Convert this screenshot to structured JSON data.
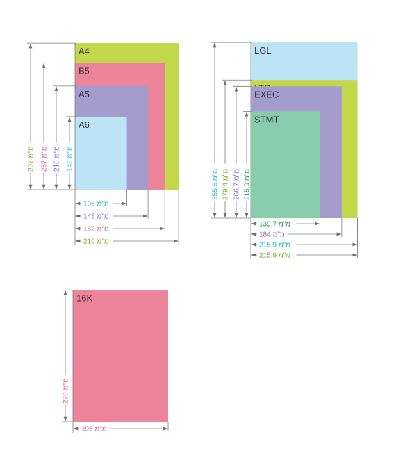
{
  "colors": {
    "green": "#c2d84a",
    "pink": "#ee8499",
    "purple": "#a39ccc",
    "blue": "#bde3f7",
    "teal": "#87ccab",
    "line": "#7b7b7b",
    "label_text": "#333333",
    "cyan": "#19b7d6",
    "green_text": "#7ab02a",
    "pink_text": "#e3577a",
    "purple_text": "#7e6eb5",
    "teal_text": "#1a9c63"
  },
  "unit": "מ\"מ",
  "iso": {
    "sheets": [
      {
        "label": "A4",
        "width": 210,
        "height": 297,
        "color": "green",
        "width_text": "210",
        "height_text": "297",
        "width_text_color": "green_text",
        "height_text_color": "green_text"
      },
      {
        "label": "B5",
        "width": 182,
        "height": 257,
        "color": "pink",
        "width_text": "182",
        "height_text": "257",
        "width_text_color": "pink_text",
        "height_text_color": "pink_text"
      },
      {
        "label": "A5",
        "width": 148,
        "height": 210,
        "color": "purple",
        "width_text": "148",
        "height_text": "210",
        "width_text_color": "purple_text",
        "height_text_color": "purple_text"
      },
      {
        "label": "A6",
        "width": 105,
        "height": 148,
        "color": "blue",
        "width_text": "105",
        "height_text": "148",
        "width_text_color": "cyan",
        "height_text_color": "cyan"
      }
    ]
  },
  "us": {
    "sheets": [
      {
        "label": "LGL",
        "width": 215.9,
        "height": 355.6,
        "color": "blue",
        "width_text": "215.9",
        "height_text": "355.6",
        "width_text_color": "cyan",
        "height_text_color": "cyan"
      },
      {
        "label": "LTR",
        "width": 215.9,
        "height": 279.4,
        "color": "green",
        "width_text": "215.9",
        "height_text": "279.4",
        "width_text_color": "green_text",
        "height_text_color": "green_text"
      },
      {
        "label": "EXEC",
        "width": 184,
        "height": 266.7,
        "color": "purple",
        "width_text": "184",
        "height_text": "266.7",
        "width_text_color": "purple_text",
        "height_text_color": "purple_text"
      },
      {
        "label": "STMT",
        "width": 139.7,
        "height": 215.9,
        "color": "teal",
        "width_text": "139.7",
        "height_text": "215.9",
        "width_text_color": "teal_text",
        "height_text_color": "teal_text"
      }
    ]
  },
  "k16": {
    "sheets": [
      {
        "label": "16K",
        "width": 195,
        "height": 270,
        "color": "pink",
        "width_text": "195",
        "height_text": "270",
        "width_text_color": "pink_text",
        "height_text_color": "pink_text"
      }
    ]
  }
}
